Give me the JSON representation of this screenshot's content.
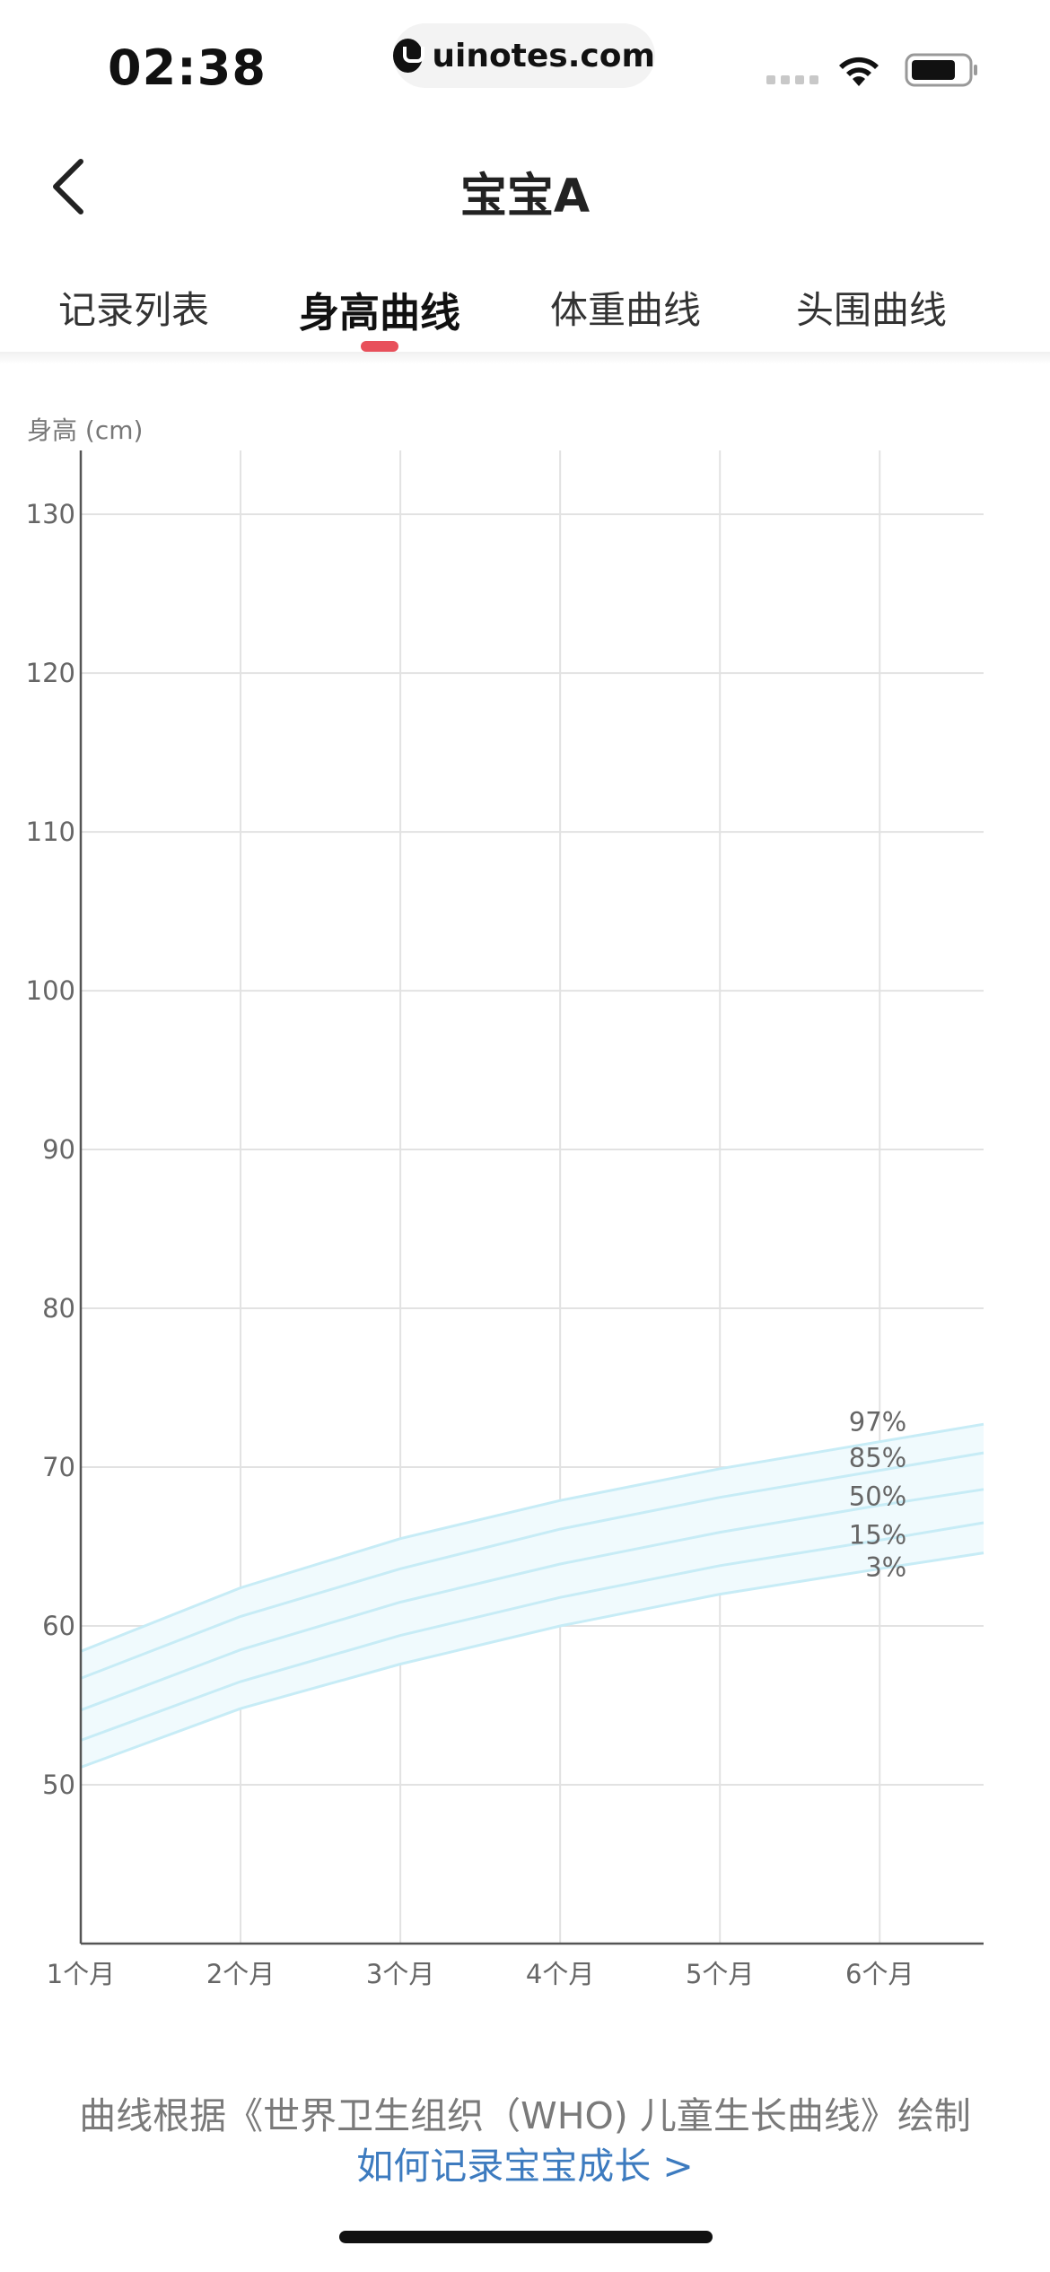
{
  "status_bar": {
    "time": "02:38",
    "url": "uinotes.com"
  },
  "nav": {
    "title": "宝宝A"
  },
  "tabs": [
    {
      "label": "记录列表",
      "active": false
    },
    {
      "label": "身高曲线",
      "active": true
    },
    {
      "label": "体重曲线",
      "active": false
    },
    {
      "label": "头围曲线",
      "active": false
    }
  ],
  "colors": {
    "accent": "#e8505b",
    "curve": "#c7ecf6",
    "band_fill": "#f0fafd",
    "link": "#3d7bbf"
  },
  "chart_data": {
    "type": "line",
    "ylabel": "身高 (cm)",
    "xlabel": "",
    "ylim": [
      40,
      133
    ],
    "y_ticks": [
      "130",
      "120",
      "110",
      "100",
      "90",
      "80",
      "70",
      "60",
      "50"
    ],
    "y_tick_values": [
      130,
      120,
      110,
      100,
      90,
      80,
      70,
      60,
      50
    ],
    "x": [
      1,
      2,
      3,
      4,
      5,
      6,
      6.65
    ],
    "x_ticks": [
      "1个月",
      "2个月",
      "3个月",
      "4个月",
      "5个月",
      "6个月"
    ],
    "x_tick_values": [
      1,
      2,
      3,
      4,
      5,
      6
    ],
    "xlim": [
      1,
      6.65
    ],
    "grid": true,
    "series": [
      {
        "name": "97%",
        "values": [
          58.4,
          62.4,
          65.5,
          67.9,
          69.9,
          71.6,
          72.7
        ]
      },
      {
        "name": "85%",
        "values": [
          56.7,
          60.6,
          63.6,
          66.1,
          68.1,
          69.8,
          70.9
        ]
      },
      {
        "name": "50%",
        "values": [
          54.7,
          58.5,
          61.5,
          63.9,
          65.9,
          67.6,
          68.6
        ]
      },
      {
        "name": "15%",
        "values": [
          52.8,
          56.5,
          59.4,
          61.8,
          63.8,
          65.4,
          66.5
        ]
      },
      {
        "name": "3%",
        "values": [
          51.1,
          54.8,
          57.6,
          60.0,
          62.0,
          63.6,
          64.6
        ]
      }
    ]
  },
  "footer": {
    "note": "曲线根据《世界卫生组织（WHO) 儿童生长曲线》绘制",
    "link": "如何记录宝宝成长 >"
  }
}
